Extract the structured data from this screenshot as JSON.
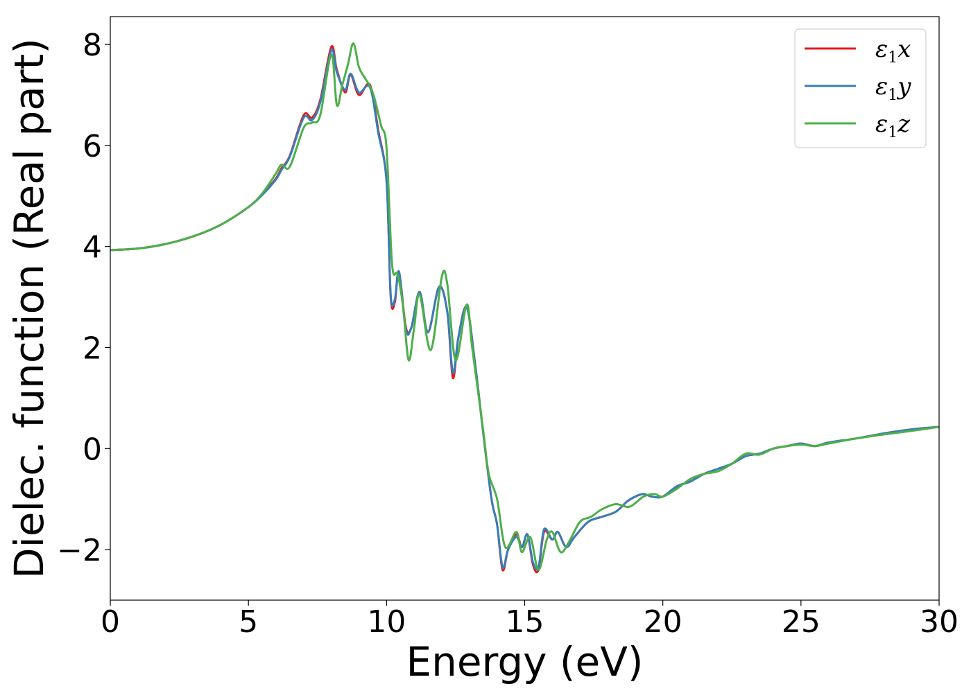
{
  "chart_data": {
    "type": "line",
    "xlabel": "Energy (eV)",
    "ylabel": "Dielec. function (Real part)",
    "xlim": [
      0,
      30
    ],
    "ylim": [
      -3.0,
      8.55
    ],
    "xticks": [
      0,
      5,
      10,
      15,
      20,
      25,
      30
    ],
    "yticks": [
      -2,
      0,
      2,
      4,
      6,
      8
    ],
    "xtick_labels": [
      "0",
      "5",
      "10",
      "15",
      "20",
      "25",
      "30"
    ],
    "ytick_labels": [
      "−2",
      "0",
      "2",
      "4",
      "6",
      "8"
    ],
    "grid": false,
    "legend_position": "top-right",
    "series": [
      {
        "name": "ε₁x",
        "legend_main": "ε",
        "legend_sub": "1",
        "legend_var": "x",
        "color": "#e41a1c",
        "x": [
          0,
          1,
          2,
          3,
          4,
          5,
          5.5,
          6,
          6.2,
          6.5,
          7.0,
          7.3,
          7.6,
          8.0,
          8.2,
          8.5,
          8.7,
          9.0,
          9.4,
          9.7,
          10.0,
          10.15,
          10.3,
          10.45,
          10.7,
          10.9,
          11.2,
          11.5,
          11.9,
          12.2,
          12.4,
          12.6,
          12.9,
          13.2,
          13.5,
          13.8,
          14.0,
          14.2,
          14.4,
          14.7,
          14.9,
          15.1,
          15.3,
          15.5,
          15.7,
          16.0,
          16.2,
          16.5,
          16.8,
          17.3,
          17.8,
          18.3,
          18.7,
          19.0,
          19.3,
          19.6,
          20.0,
          20.5,
          21.0,
          21.5,
          22.0,
          22.5,
          23.0,
          23.5,
          24.0,
          24.5,
          25.0,
          25.5,
          26.0,
          27.0,
          28.0,
          29.0,
          30.0
        ],
        "y": [
          3.93,
          3.96,
          4.05,
          4.2,
          4.43,
          4.78,
          5.03,
          5.35,
          5.55,
          5.8,
          6.6,
          6.55,
          6.9,
          7.95,
          7.5,
          7.05,
          7.4,
          7.0,
          7.2,
          6.3,
          5.3,
          3.0,
          2.9,
          3.5,
          2.4,
          2.4,
          3.1,
          2.3,
          3.2,
          2.7,
          1.4,
          2.2,
          2.8,
          1.7,
          0.3,
          -1.0,
          -1.5,
          -2.4,
          -2.0,
          -1.7,
          -1.95,
          -1.7,
          -2.3,
          -2.4,
          -1.65,
          -1.8,
          -1.65,
          -1.95,
          -1.75,
          -1.45,
          -1.35,
          -1.25,
          -1.05,
          -0.95,
          -0.9,
          -0.95,
          -0.95,
          -0.75,
          -0.65,
          -0.5,
          -0.4,
          -0.3,
          -0.15,
          -0.1,
          0.0,
          0.05,
          0.1,
          0.05,
          0.12,
          0.2,
          0.3,
          0.38,
          0.43
        ]
      },
      {
        "name": "ε₁y",
        "legend_main": "ε",
        "legend_sub": "1",
        "legend_var": "y",
        "color": "#377eb8",
        "x": [
          0,
          1,
          2,
          3,
          4,
          5,
          5.5,
          6,
          6.2,
          6.5,
          7.0,
          7.3,
          7.6,
          8.0,
          8.2,
          8.5,
          8.7,
          9.0,
          9.4,
          9.7,
          10.0,
          10.15,
          10.3,
          10.45,
          10.7,
          10.9,
          11.2,
          11.5,
          11.9,
          12.2,
          12.4,
          12.6,
          12.9,
          13.2,
          13.5,
          13.8,
          14.0,
          14.2,
          14.4,
          14.7,
          14.9,
          15.1,
          15.3,
          15.5,
          15.7,
          16.0,
          16.2,
          16.5,
          16.8,
          17.3,
          17.8,
          18.3,
          18.7,
          19.0,
          19.3,
          19.6,
          20.0,
          20.5,
          21.0,
          21.5,
          22.0,
          22.5,
          23.0,
          23.5,
          24.0,
          24.5,
          25.0,
          25.5,
          26.0,
          27.0,
          28.0,
          29.0,
          30.0
        ],
        "y": [
          3.93,
          3.96,
          4.05,
          4.2,
          4.43,
          4.78,
          5.02,
          5.33,
          5.52,
          5.78,
          6.55,
          6.5,
          6.85,
          7.88,
          7.45,
          7.1,
          7.42,
          7.05,
          7.15,
          6.25,
          5.3,
          3.05,
          2.95,
          3.5,
          2.35,
          2.4,
          3.1,
          2.3,
          3.2,
          2.7,
          1.5,
          2.2,
          2.8,
          1.7,
          0.3,
          -1.0,
          -1.5,
          -2.35,
          -2.0,
          -1.75,
          -1.95,
          -1.7,
          -2.25,
          -2.35,
          -1.6,
          -1.8,
          -1.65,
          -1.95,
          -1.75,
          -1.45,
          -1.35,
          -1.25,
          -1.05,
          -0.95,
          -0.9,
          -0.95,
          -0.95,
          -0.75,
          -0.65,
          -0.5,
          -0.4,
          -0.3,
          -0.15,
          -0.1,
          0.0,
          0.05,
          0.1,
          0.05,
          0.12,
          0.2,
          0.3,
          0.38,
          0.43
        ]
      },
      {
        "name": "ε₁z",
        "legend_main": "ε",
        "legend_sub": "1",
        "legend_var": "z",
        "color": "#4daf4a",
        "x": [
          0,
          1,
          2,
          3,
          4,
          5,
          5.5,
          6,
          6.2,
          6.5,
          7.0,
          7.3,
          7.6,
          8.0,
          8.2,
          8.4,
          8.6,
          8.8,
          9.0,
          9.2,
          9.5,
          9.8,
          10.0,
          10.2,
          10.4,
          10.6,
          10.8,
          11.0,
          11.2,
          11.6,
          12.0,
          12.2,
          12.5,
          12.9,
          13.1,
          13.5,
          13.7,
          14.0,
          14.3,
          14.7,
          14.9,
          15.2,
          15.5,
          15.8,
          16.0,
          16.3,
          16.6,
          17.0,
          17.4,
          17.8,
          18.3,
          18.8,
          19.3,
          19.7,
          20.0,
          20.5,
          21.0,
          21.5,
          22.0,
          22.5,
          23.0,
          23.5,
          24.0,
          24.5,
          25.0,
          25.5,
          26.0,
          27.0,
          28.0,
          29.0,
          30.0
        ],
        "y": [
          3.93,
          3.96,
          4.05,
          4.2,
          4.43,
          4.78,
          5.05,
          5.45,
          5.62,
          5.58,
          6.35,
          6.45,
          6.6,
          7.8,
          6.8,
          7.2,
          7.6,
          8.02,
          7.55,
          7.35,
          7.05,
          6.4,
          5.95,
          3.65,
          3.45,
          2.8,
          1.75,
          2.4,
          3.05,
          1.95,
          3.4,
          3.25,
          1.75,
          2.85,
          2.0,
          0.35,
          -0.5,
          -1.0,
          -1.95,
          -1.65,
          -2.05,
          -1.75,
          -2.4,
          -1.8,
          -1.65,
          -2.05,
          -1.85,
          -1.45,
          -1.35,
          -1.2,
          -1.1,
          -1.15,
          -0.95,
          -0.9,
          -0.95,
          -0.8,
          -0.6,
          -0.5,
          -0.45,
          -0.3,
          -0.1,
          -0.12,
          0.0,
          0.05,
          0.08,
          0.05,
          0.1,
          0.2,
          0.28,
          0.35,
          0.43
        ]
      }
    ]
  }
}
